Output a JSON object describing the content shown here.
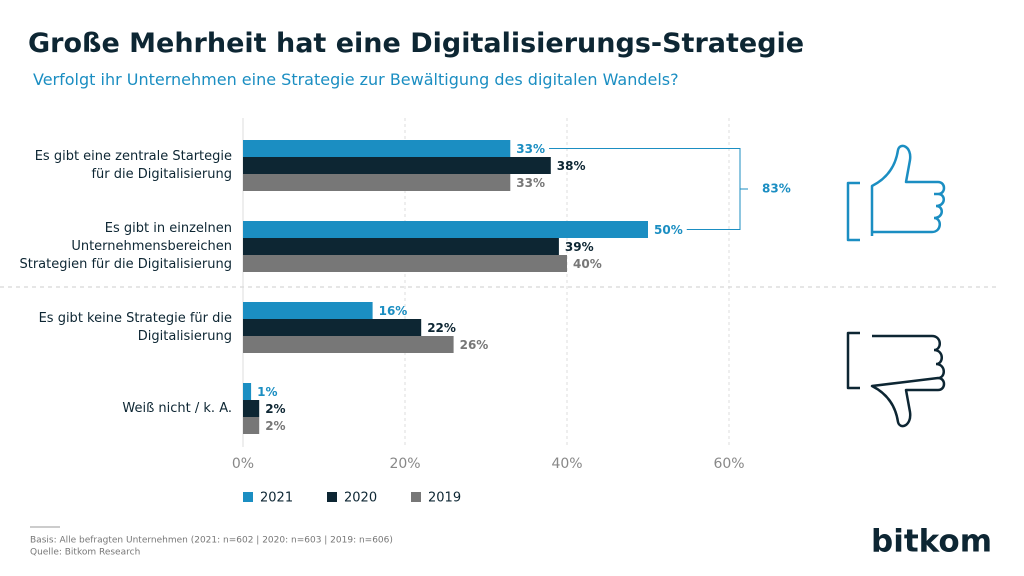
{
  "chart_data": {
    "type": "bar",
    "orientation": "horizontal",
    "title": "Große Mehrheit hat eine Digitalisierungs-Strategie",
    "subtitle": "Verfolgt ihr Unternehmen eine Strategie zur Bewältigung des digitalen Wandels?",
    "categories": [
      "Es gibt eine zentrale Startegie für die Digitalisierung",
      "Es gibt in einzelnen Unternehmensbereichen Strategien für die Digitalisierung",
      "Es gibt keine Strategie für die Digitalisierung",
      "Weiß nicht / k. A."
    ],
    "series": [
      {
        "name": "2021",
        "color": "#1b8ec2",
        "values": [
          33,
          50,
          16,
          1
        ],
        "value_labels": [
          "33%",
          "50%",
          "16%",
          "1%"
        ]
      },
      {
        "name": "2020",
        "color": "#0d2633",
        "values": [
          38,
          39,
          22,
          2
        ],
        "value_labels": [
          "38%",
          "39%",
          "22%",
          "2%"
        ]
      },
      {
        "name": "2019",
        "color": "#777777",
        "values": [
          33,
          40,
          26,
          2
        ],
        "value_labels": [
          "33%",
          "40%",
          "26%",
          "2%"
        ]
      }
    ],
    "xlim": [
      0,
      60
    ],
    "xticks": [
      {
        "value": 0,
        "label": "0%"
      },
      {
        "value": 20,
        "label": "20%"
      },
      {
        "value": 40,
        "label": "40%"
      },
      {
        "value": 60,
        "label": "60%"
      }
    ],
    "grid": true,
    "annotation": {
      "value": 83,
      "label": "83%"
    },
    "footnotes": [
      "Basis: Alle befragten Unternehmen (2021: n=602 | 2020: n=603 | 2019: n=606)",
      "Quelle: Bitkom Research"
    ],
    "logo": "bitkom"
  }
}
